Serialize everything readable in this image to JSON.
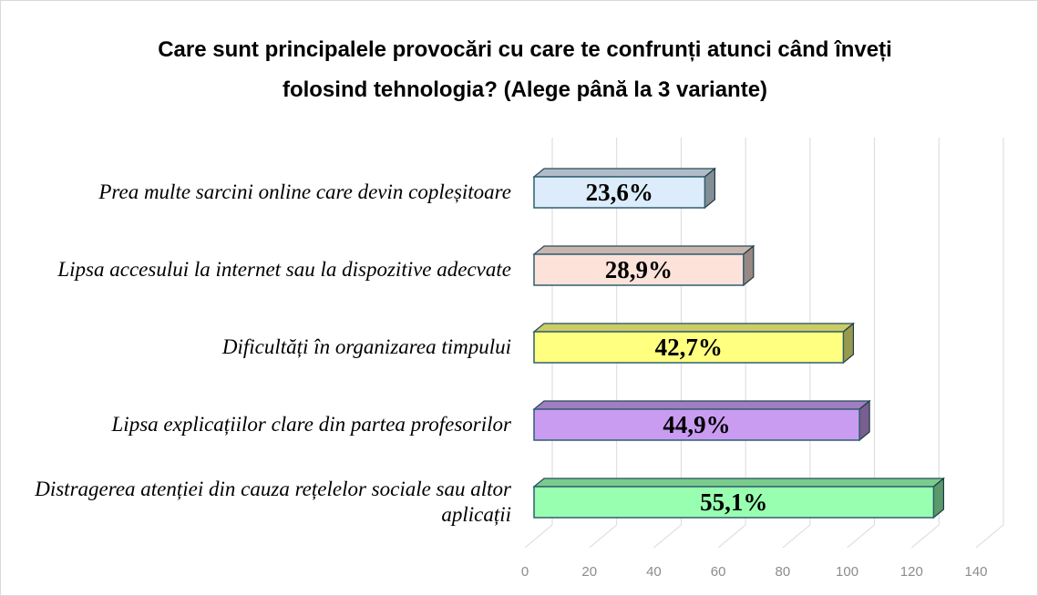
{
  "chart_data": {
    "type": "bar3d_horizontal",
    "title": "Care sunt principalele provocări cu care te confrunți atunci când înveți folosind tehnologia? (Alege până la 3 variante)",
    "categories": [
      "Prea multe sarcini online care devin copleșitoare",
      "Lipsa accesului la internet sau la dispozitive adecvate",
      "Dificultăți în organizarea timpului",
      "Lipsa explicațiilor clare din partea profesorilor",
      "Distragerea atenției din cauza rețelelor sociale sau altor aplicații"
    ],
    "values": [
      53,
      65,
      96,
      101,
      124
    ],
    "value_labels": [
      "23,6%",
      "28,9%",
      "42,7%",
      "44,9%",
      "55,1%"
    ],
    "colors": [
      "#dcecfa",
      "#fde2da",
      "#ffff80",
      "#c99cf2",
      "#99ffb0"
    ],
    "xlim": [
      0,
      140
    ],
    "xticks": [
      0,
      20,
      40,
      60,
      80,
      100,
      120,
      140
    ],
    "grid": true
  }
}
